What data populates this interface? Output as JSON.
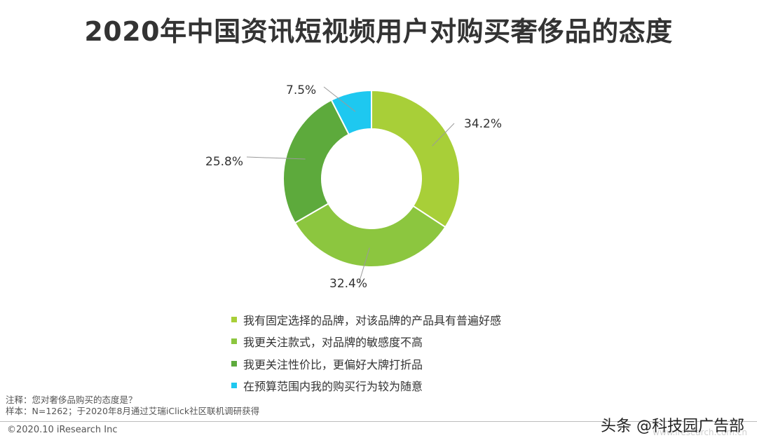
{
  "title": "2020年中国资讯短视频用户对购买奢侈品的态度",
  "chart_data": {
    "type": "pie",
    "title": "2020年中国资讯短视频用户对购买奢侈品的态度",
    "donut": true,
    "categories": [
      "我有固定选择的品牌，对该品牌的产品具有普遍好感",
      "我更关注款式，对品牌的敏感度不高",
      "我更关注性价比，更偏好大牌打折品",
      "在预算范围内我的购买行为较为随意"
    ],
    "values": [
      34.2,
      32.4,
      25.8,
      7.5
    ],
    "labels": [
      "34.2%",
      "32.4%",
      "25.8%",
      "7.5%"
    ],
    "colors": [
      "#a8cf38",
      "#8cc63f",
      "#5daa3c",
      "#1ec8f0"
    ],
    "legend_position": "bottom"
  },
  "notes": {
    "note": "注释：您对奢侈品购买的态度是？",
    "sample": "样本：N=1262；于2020年8月通过艾瑞iClick社区联机调研获得"
  },
  "footer": {
    "copyright": "©2020.10 iResearch Inc",
    "watermark": "头条 @科技园广告部",
    "site": "www.iresearch.com.cn"
  }
}
